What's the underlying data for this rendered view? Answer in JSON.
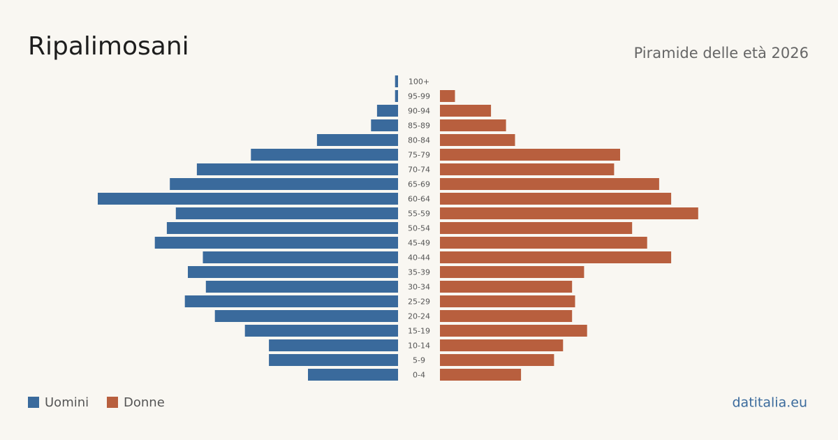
{
  "chart_data": {
    "type": "pyramid",
    "title": "Ripalimosani",
    "subtitle": "Piramide delle età 2026",
    "source": "datitalia.eu",
    "categories": [
      "100+",
      "95-99",
      "90-94",
      "85-89",
      "80-84",
      "75-79",
      "70-74",
      "65-69",
      "60-64",
      "55-59",
      "50-54",
      "45-49",
      "40-44",
      "35-39",
      "30-34",
      "25-29",
      "20-24",
      "15-19",
      "10-14",
      "5-9",
      "0-4"
    ],
    "series": [
      {
        "name": "Uomini",
        "color": "#3a6a9c",
        "values": [
          1,
          1,
          7,
          9,
          27,
          49,
          67,
          76,
          100,
          74,
          77,
          81,
          65,
          70,
          64,
          71,
          61,
          51,
          43,
          43,
          30
        ]
      },
      {
        "name": "Donne",
        "color": "#b85f3e",
        "values": [
          0,
          5,
          17,
          22,
          25,
          60,
          58,
          73,
          77,
          86,
          64,
          69,
          77,
          48,
          44,
          45,
          44,
          49,
          41,
          38,
          27
        ]
      }
    ]
  }
}
